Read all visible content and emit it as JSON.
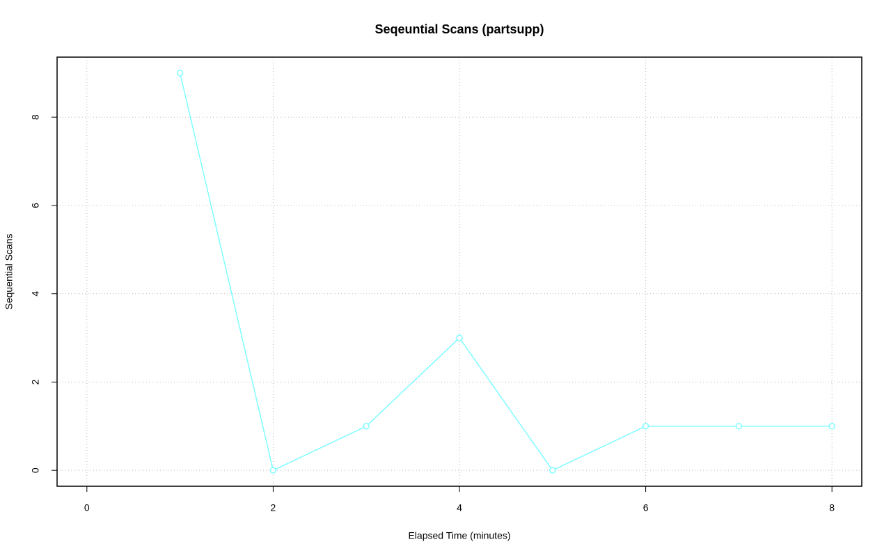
{
  "chart_data": {
    "type": "line",
    "title": "Seqeuntial Scans (partsupp)",
    "x_label": "Elapsed Time (minutes)",
    "y_label": "Sequential Scans",
    "x": [
      1,
      2,
      3,
      4,
      5,
      6,
      7,
      8
    ],
    "series": [
      {
        "name": "partsupp",
        "color": "#7fffff",
        "values": [
          9,
          0,
          1,
          3,
          0,
          1,
          1,
          1
        ]
      }
    ],
    "xlim": [
      -0.32,
      8.32
    ],
    "xticks": [
      0,
      2,
      4,
      6,
      8
    ],
    "ylim": [
      -0.36,
      9.36
    ],
    "yticks": [
      0,
      2,
      4,
      6,
      8
    ],
    "grid": true,
    "markers": true
  }
}
